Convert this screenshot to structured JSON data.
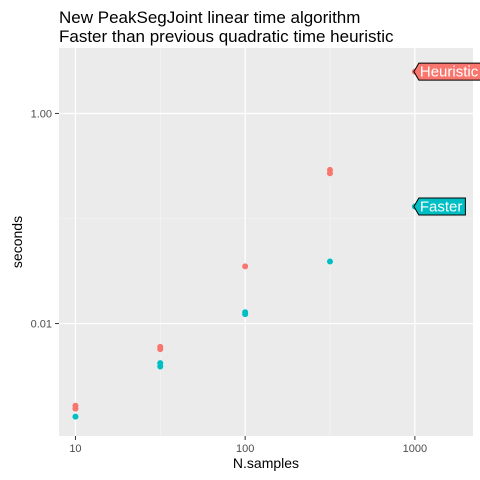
{
  "chart_data": {
    "type": "scatter",
    "title": "New PeakSegJoint linear time algorithm",
    "subtitle": "Faster than previous quadratic time heuristic",
    "xlabel": "N.samples",
    "ylabel": "seconds",
    "x_scale": "log10",
    "y_scale": "log10",
    "xlim": [
      8,
      2200
    ],
    "ylim": [
      0.00085,
      4.2
    ],
    "x_ticks": [
      {
        "value": 10,
        "label": "10"
      },
      {
        "value": 100,
        "label": "100"
      },
      {
        "value": 1000,
        "label": "1000"
      }
    ],
    "y_ticks": [
      {
        "value": 0.01,
        "label": "0.01"
      },
      {
        "value": 1.0,
        "label": "1.00"
      }
    ],
    "grid": true,
    "legend": "none",
    "series": [
      {
        "name": "Heuristic",
        "color": "#F8766D",
        "points": [
          {
            "x": 10,
            "y": 0.00155
          },
          {
            "x": 10,
            "y": 0.00165
          },
          {
            "x": 31.6,
            "y": 0.0057
          },
          {
            "x": 31.6,
            "y": 0.006
          },
          {
            "x": 100,
            "y": 0.035
          },
          {
            "x": 316,
            "y": 0.27
          },
          {
            "x": 316,
            "y": 0.29
          },
          {
            "x": 1000,
            "y": 2.5
          }
        ]
      },
      {
        "name": "Faster",
        "color": "#00BFC4",
        "points": [
          {
            "x": 10,
            "y": 0.0013
          },
          {
            "x": 31.6,
            "y": 0.0039
          },
          {
            "x": 31.6,
            "y": 0.0042
          },
          {
            "x": 100,
            "y": 0.0123
          },
          {
            "x": 100,
            "y": 0.0128
          },
          {
            "x": 316,
            "y": 0.039
          },
          {
            "x": 1000,
            "y": 0.13
          }
        ]
      }
    ],
    "annotations": [
      {
        "text": "Heuristic",
        "x": 1000,
        "y": 2.5,
        "color": "#F8766D"
      },
      {
        "text": "Faster",
        "x": 1000,
        "y": 0.13,
        "color": "#00BFC4"
      }
    ]
  }
}
